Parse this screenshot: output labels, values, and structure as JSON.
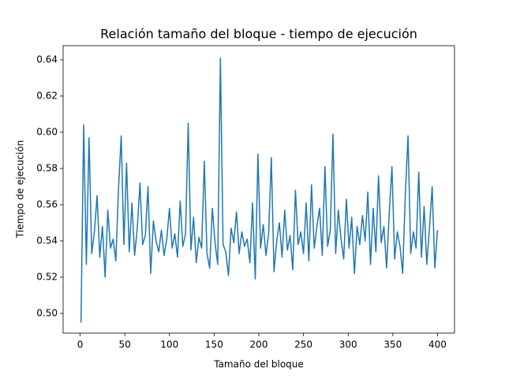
{
  "chart_data": {
    "type": "line",
    "title": "Relación tamaño del bloque - tiempo de ejecución",
    "xlabel": "Tamaño del bloque",
    "ylabel": "Tiempo de ejecución",
    "color": "#1f77b4",
    "x": [
      1,
      4,
      7,
      10,
      13,
      16,
      19,
      22,
      25,
      28,
      31,
      34,
      37,
      40,
      43,
      46,
      49,
      52,
      55,
      58,
      61,
      64,
      67,
      70,
      73,
      76,
      79,
      82,
      85,
      88,
      91,
      94,
      97,
      100,
      103,
      106,
      109,
      112,
      115,
      118,
      121,
      124,
      127,
      130,
      133,
      136,
      139,
      142,
      145,
      148,
      151,
      154,
      157,
      160,
      163,
      166,
      169,
      172,
      175,
      178,
      181,
      184,
      187,
      190,
      193,
      196,
      199,
      202,
      205,
      208,
      211,
      214,
      217,
      220,
      223,
      226,
      229,
      232,
      235,
      238,
      241,
      244,
      247,
      250,
      253,
      256,
      259,
      262,
      265,
      268,
      271,
      274,
      277,
      280,
      283,
      286,
      289,
      292,
      295,
      298,
      301,
      304,
      307,
      310,
      313,
      316,
      319,
      322,
      325,
      328,
      331,
      334,
      337,
      340,
      343,
      346,
      349,
      352,
      355,
      358,
      361,
      364,
      367,
      370,
      373,
      376,
      379,
      382,
      385,
      388,
      391,
      394,
      397,
      400
    ],
    "values": [
      0.495,
      0.604,
      0.527,
      0.597,
      0.533,
      0.545,
      0.565,
      0.531,
      0.548,
      0.52,
      0.557,
      0.536,
      0.541,
      0.529,
      0.569,
      0.598,
      0.538,
      0.583,
      0.534,
      0.561,
      0.532,
      0.547,
      0.572,
      0.538,
      0.543,
      0.57,
      0.522,
      0.551,
      0.54,
      0.534,
      0.546,
      0.532,
      0.541,
      0.558,
      0.536,
      0.544,
      0.531,
      0.562,
      0.537,
      0.544,
      0.605,
      0.535,
      0.553,
      0.528,
      0.542,
      0.536,
      0.584,
      0.533,
      0.525,
      0.558,
      0.539,
      0.527,
      0.641,
      0.538,
      0.534,
      0.521,
      0.547,
      0.539,
      0.556,
      0.533,
      0.545,
      0.537,
      0.541,
      0.528,
      0.561,
      0.519,
      0.588,
      0.536,
      0.549,
      0.532,
      0.544,
      0.586,
      0.523,
      0.54,
      0.55,
      0.531,
      0.557,
      0.535,
      0.543,
      0.524,
      0.568,
      0.538,
      0.545,
      0.533,
      0.561,
      0.529,
      0.571,
      0.536,
      0.548,
      0.558,
      0.532,
      0.581,
      0.537,
      0.546,
      0.599,
      0.533,
      0.557,
      0.541,
      0.53,
      0.563,
      0.536,
      0.553,
      0.522,
      0.548,
      0.538,
      0.554,
      0.54,
      0.567,
      0.527,
      0.558,
      0.534,
      0.576,
      0.539,
      0.548,
      0.525,
      0.556,
      0.581,
      0.53,
      0.545,
      0.537,
      0.522,
      0.566,
      0.598,
      0.533,
      0.545,
      0.536,
      0.578,
      0.531,
      0.559,
      0.527,
      0.547,
      0.57,
      0.525,
      0.546
    ],
    "xlim": [
      -19,
      419
    ],
    "ylim": [
      0.4891,
      0.6478
    ],
    "xticks": [
      0,
      50,
      100,
      150,
      200,
      250,
      300,
      350,
      400
    ],
    "yticks": [
      {
        "value": 0.5,
        "label": "0.50"
      },
      {
        "value": 0.52,
        "label": "0.52"
      },
      {
        "value": 0.54,
        "label": "0.54"
      },
      {
        "value": 0.56,
        "label": "0.56"
      },
      {
        "value": 0.58,
        "label": "0.58"
      },
      {
        "value": 0.6,
        "label": "0.60"
      },
      {
        "value": 0.62,
        "label": "0.62"
      },
      {
        "value": 0.64,
        "label": "0.64"
      }
    ]
  }
}
